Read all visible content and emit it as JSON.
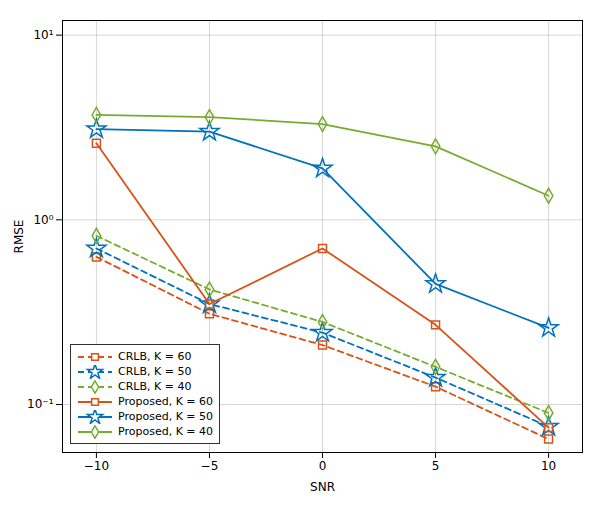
{
  "chart_data": {
    "type": "line",
    "xlabel": "SNR",
    "ylabel": "RMSE",
    "x": [
      -10,
      -5,
      0,
      5,
      10
    ],
    "series": [
      {
        "name": "CRLB, K = 60",
        "color": "#D95319",
        "marker": "square",
        "line_style": "dashed",
        "values": [
          0.63,
          0.31,
          0.21,
          0.125,
          0.065
        ]
      },
      {
        "name": "CRLB, K = 50",
        "color": "#0072BD",
        "marker": "star",
        "line_style": "dashed",
        "values": [
          0.7,
          0.35,
          0.245,
          0.14,
          0.076
        ]
      },
      {
        "name": "CRLB, K = 40",
        "color": "#77AC30",
        "marker": "diamond",
        "line_style": "dashed",
        "values": [
          0.82,
          0.42,
          0.28,
          0.16,
          0.09
        ]
      },
      {
        "name": "Proposed, K = 60",
        "color": "#D95319",
        "marker": "square",
        "line_style": "solid",
        "values": [
          2.6,
          0.35,
          0.7,
          0.27,
          0.075
        ]
      },
      {
        "name": "Proposed, K = 50",
        "color": "#0072BD",
        "marker": "star",
        "line_style": "solid",
        "values": [
          3.1,
          3.0,
          1.9,
          0.45,
          0.26
        ]
      },
      {
        "name": "Proposed, K = 40",
        "color": "#77AC30",
        "marker": "diamond",
        "line_style": "solid",
        "values": [
          3.7,
          3.6,
          3.3,
          2.5,
          1.35
        ]
      }
    ],
    "xlim": [
      -11.5,
      11.5
    ],
    "xticks": [
      -10,
      -5,
      0,
      5,
      10
    ],
    "ylim": [
      0.055,
      12
    ],
    "yticks": [
      {
        "value": 0.1,
        "label": "10⁻¹"
      },
      {
        "value": 1,
        "label": "10⁰"
      },
      {
        "value": 10,
        "label": "10¹"
      }
    ],
    "log": "y",
    "grid": true,
    "legend": "lower left"
  }
}
